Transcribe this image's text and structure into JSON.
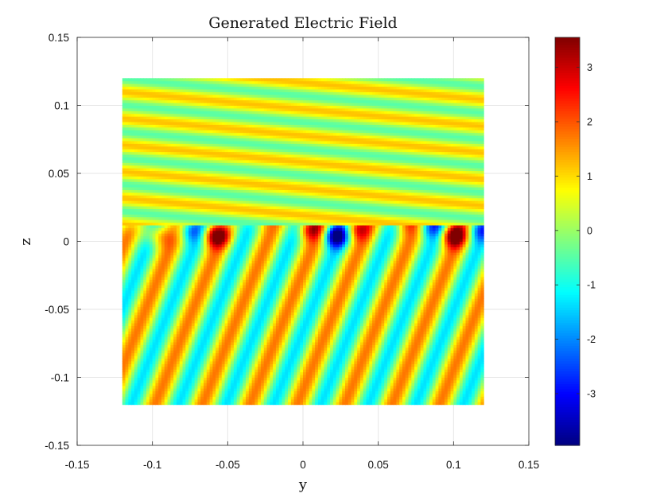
{
  "chart_data": {
    "type": "heatmap",
    "title": "Generated Electric Field",
    "xlabel": "y",
    "ylabel": "z",
    "xlim": [
      -0.15,
      0.15
    ],
    "ylim": [
      -0.15,
      0.15
    ],
    "grid": true,
    "colormap": "jet",
    "x_ticks": [
      -0.15,
      -0.1,
      -0.05,
      0,
      0.05,
      0.1,
      0.15
    ],
    "x_tick_labels": [
      "-0.15",
      "-0.1",
      "-0.05",
      "0",
      "0.05",
      "0.1",
      "0.15"
    ],
    "y_ticks": [
      -0.15,
      -0.1,
      -0.05,
      0,
      0.05,
      0.1,
      0.15
    ],
    "y_tick_labels": [
      "-0.15",
      "-0.1",
      "-0.05",
      "0",
      "0.05",
      "0.1",
      "0.15"
    ],
    "field_extent": {
      "y": [
        -0.12,
        0.12
      ],
      "z": [
        -0.12,
        0.12
      ]
    },
    "grid_resolution": 120,
    "colorbar": {
      "range": [
        -3.95,
        3.55
      ],
      "ticks": [
        -3,
        -2,
        -1,
        0,
        1,
        2,
        3
      ],
      "tick_labels": [
        "-3",
        "-2",
        "-1",
        "0",
        "1",
        "2",
        "3"
      ]
    }
  }
}
